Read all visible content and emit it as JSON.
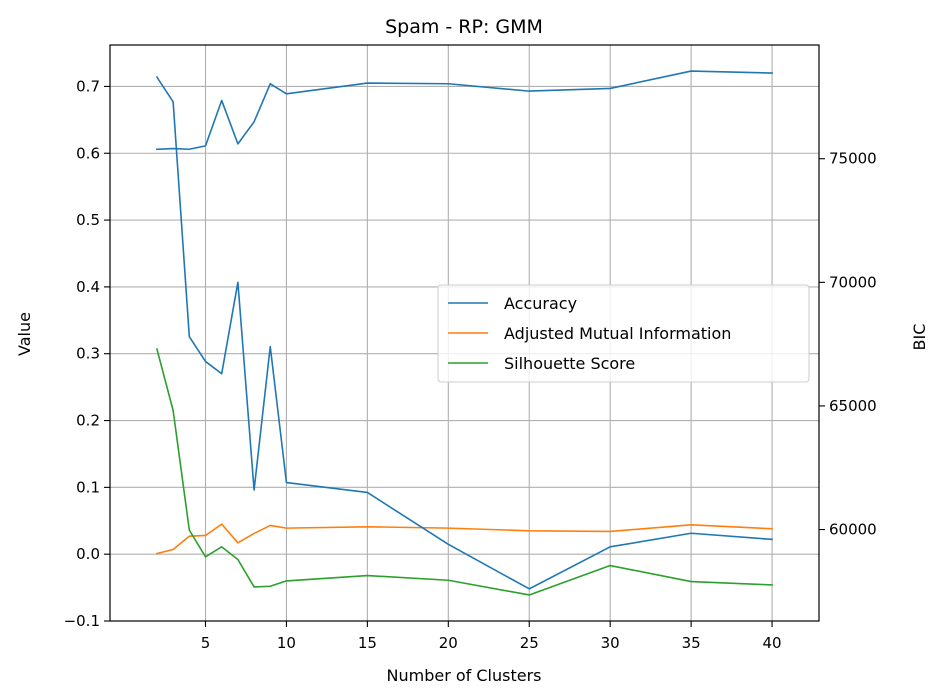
{
  "chart_data": {
    "type": "line",
    "title": "Spam - RP: GMM",
    "xlabel": "Number of Clusters",
    "ylabel": "Value",
    "y2label": "BIC",
    "x": [
      2,
      3,
      4,
      5,
      6,
      7,
      8,
      9,
      10,
      15,
      20,
      25,
      30,
      35,
      40
    ],
    "xticks": [
      5,
      10,
      15,
      20,
      25,
      30,
      35,
      40
    ],
    "xlim": [
      -0.9,
      42.9
    ],
    "yticks": [
      "−0.1",
      "0.0",
      "0.1",
      "0.2",
      "0.3",
      "0.4",
      "0.5",
      "0.6",
      "0.7"
    ],
    "ylim": [
      -0.1,
      0.762
    ],
    "y2ticks": [
      "60000",
      "65000",
      "70000",
      "75000"
    ],
    "y2lim": [
      56300,
      79600
    ],
    "grid": true,
    "legend_loc": "center right",
    "colors": {
      "series_0": "#1f77b4",
      "series_1": "#ff7f0e",
      "series_2": "#2ca02c",
      "grid": "#b0b0b0"
    },
    "series": [
      {
        "name": "Accuracy",
        "axis": "left",
        "values": [
          0.606,
          0.607,
          0.606,
          0.611,
          0.679,
          0.614,
          0.647,
          0.704,
          0.689,
          0.705,
          0.704,
          0.693,
          0.697,
          0.723,
          0.72
        ]
      },
      {
        "name": "Adjusted Mutual Information",
        "axis": "left",
        "values": [
          0.001,
          0.007,
          0.027,
          0.028,
          0.045,
          0.017,
          0.031,
          0.043,
          0.039,
          0.041,
          0.039,
          0.035,
          0.034,
          0.044,
          0.038
        ]
      },
      {
        "name": "Silhouette Score",
        "axis": "left",
        "values": [
          0.307,
          0.215,
          0.036,
          -0.004,
          0.011,
          -0.008,
          -0.049,
          -0.048,
          -0.04,
          -0.032,
          -0.039,
          -0.061,
          -0.017,
          -0.041,
          -0.046
        ]
      },
      {
        "name": "BIC",
        "axis": "right",
        "in_legend": false,
        "values": [
          78300,
          77300,
          67800,
          66800,
          66300,
          70000,
          61600,
          67400,
          61900,
          61500,
          59400,
          57600,
          59300,
          59850,
          59600
        ]
      }
    ]
  }
}
